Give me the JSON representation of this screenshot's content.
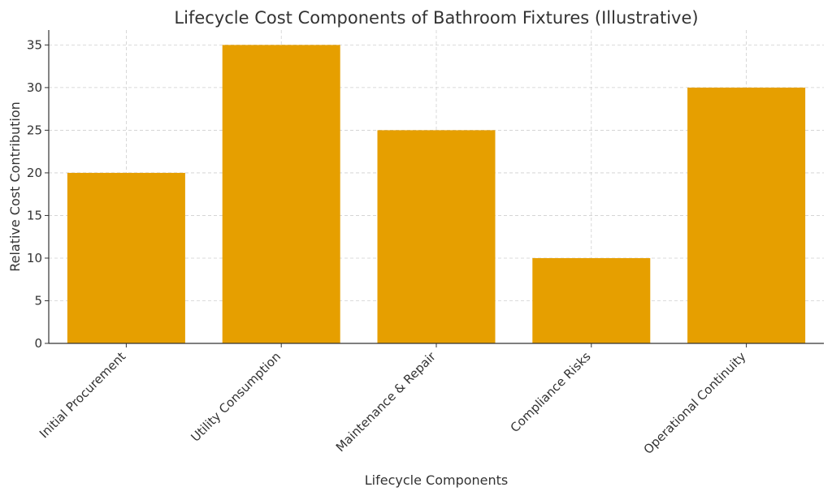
{
  "chart_data": {
    "type": "bar",
    "title": "Lifecycle Cost Components of Bathroom Fixtures (Illustrative)",
    "xlabel": "Lifecycle Components",
    "ylabel": "Relative Cost Contribution",
    "categories": [
      "Initial Procurement",
      "Utility Consumption",
      "Maintenance & Repair",
      "Compliance Risks",
      "Operational Continuity"
    ],
    "values": [
      20,
      35,
      25,
      10,
      30
    ],
    "ylim": [
      0,
      36.75
    ],
    "yticks": [
      "0",
      "5",
      "10",
      "15",
      "20",
      "25",
      "30",
      "35"
    ],
    "grid": true,
    "legend": "none",
    "bar_color": "#E69F00"
  }
}
